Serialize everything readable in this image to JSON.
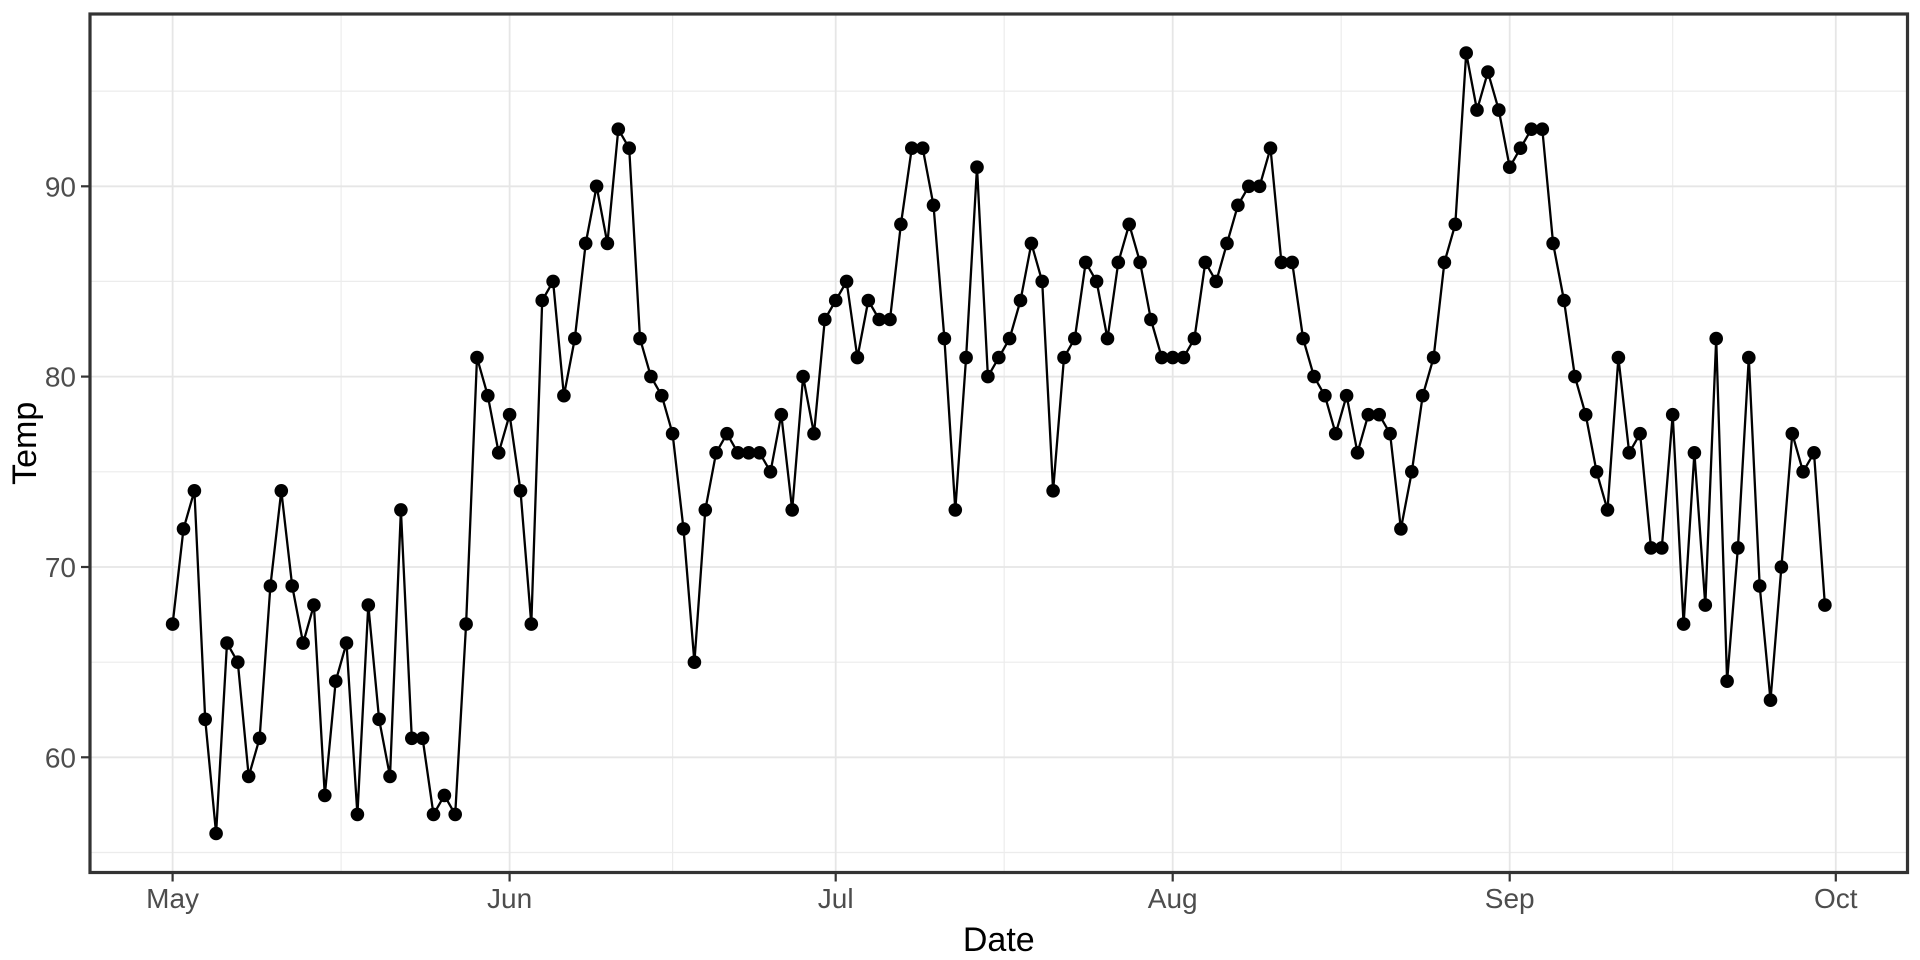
{
  "chart_data": {
    "type": "line",
    "title": "",
    "xlabel": "Date",
    "ylabel": "Temp",
    "grid": true,
    "legend_position": "none",
    "x_axis": {
      "tick_labels": [
        "May",
        "Jun",
        "Jul",
        "Aug",
        "Sep",
        "Oct"
      ],
      "tick_days": [
        0,
        31,
        61,
        92,
        123,
        153
      ],
      "minor_days": [
        15.5,
        46,
        76.5,
        107.5,
        138
      ],
      "domain_days": [
        -7.6,
        159.6
      ],
      "note": "daily observations, day 0 = May 1, last point day 152 = Sep 30"
    },
    "y_axis": {
      "tick_labels": [
        "60",
        "70",
        "80",
        "90"
      ],
      "tick_values": [
        60,
        70,
        80,
        90
      ],
      "minor_values": [
        55,
        65,
        75,
        85,
        95
      ],
      "domain": [
        53.95,
        99.05
      ]
    },
    "series": [
      {
        "name": "Temp",
        "values": [
          67,
          72,
          74,
          62,
          56,
          66,
          65,
          59,
          61,
          69,
          74,
          69,
          66,
          68,
          58,
          64,
          66,
          57,
          68,
          62,
          59,
          73,
          61,
          61,
          57,
          58,
          57,
          67,
          81,
          79,
          76,
          78,
          74,
          67,
          84,
          85,
          79,
          82,
          87,
          90,
          87,
          93,
          92,
          82,
          80,
          79,
          77,
          72,
          65,
          73,
          76,
          77,
          76,
          76,
          76,
          75,
          78,
          73,
          80,
          77,
          83,
          84,
          85,
          81,
          84,
          83,
          83,
          88,
          92,
          92,
          89,
          82,
          73,
          81,
          91,
          80,
          81,
          82,
          84,
          87,
          85,
          74,
          81,
          82,
          86,
          85,
          82,
          86,
          88,
          86,
          83,
          81,
          81,
          81,
          82,
          86,
          85,
          87,
          89,
          90,
          90,
          92,
          86,
          86,
          82,
          80,
          79,
          77,
          79,
          76,
          78,
          78,
          77,
          72,
          75,
          79,
          81,
          86,
          88,
          97,
          94,
          96,
          94,
          91,
          92,
          93,
          93,
          87,
          84,
          80,
          78,
          75,
          73,
          81,
          76,
          77,
          71,
          71,
          78,
          67,
          76,
          68,
          82,
          64,
          71,
          81,
          69,
          63,
          70,
          77,
          75,
          76,
          68
        ]
      }
    ],
    "marker": {
      "shape": "circle",
      "radius_px": 6.8
    },
    "colors": {
      "line": "#000000",
      "point": "#000000",
      "grid_major": "#e6e6e6",
      "grid_minor": "#ececec",
      "panel_border": "#333333",
      "tick_mark": "#333333",
      "tick_label": "#4d4d4d",
      "axis_title": "#000000",
      "background": "#ffffff"
    }
  }
}
